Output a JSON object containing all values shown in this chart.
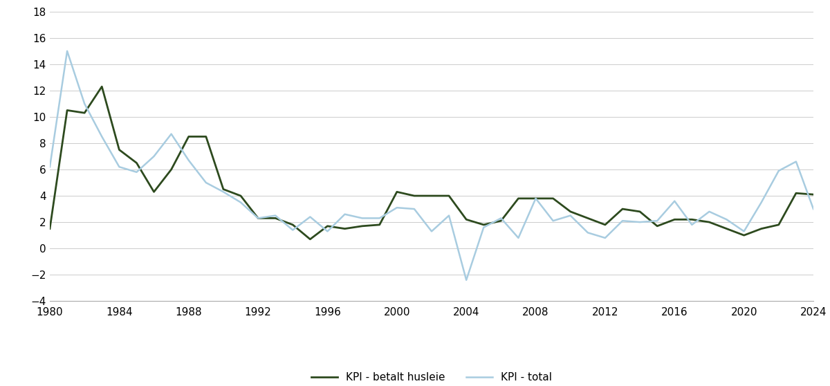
{
  "years": [
    1980,
    1981,
    1982,
    1983,
    1984,
    1985,
    1986,
    1987,
    1988,
    1989,
    1990,
    1991,
    1992,
    1993,
    1994,
    1995,
    1996,
    1997,
    1998,
    1999,
    2000,
    2001,
    2002,
    2003,
    2004,
    2005,
    2006,
    2007,
    2008,
    2009,
    2010,
    2011,
    2012,
    2013,
    2014,
    2015,
    2016,
    2017,
    2018,
    2019,
    2020,
    2021,
    2022,
    2023,
    2024
  ],
  "kpi_husleie": [
    1.5,
    10.5,
    10.3,
    12.3,
    7.5,
    6.5,
    4.3,
    6.0,
    8.5,
    8.5,
    4.5,
    4.0,
    2.3,
    2.3,
    1.8,
    0.7,
    1.7,
    1.5,
    1.7,
    1.8,
    4.3,
    4.0,
    4.0,
    4.0,
    2.2,
    1.8,
    2.1,
    3.8,
    3.8,
    3.8,
    2.8,
    2.3,
    1.8,
    3.0,
    2.8,
    1.7,
    2.2,
    2.2,
    2.0,
    1.5,
    1.0,
    1.5,
    1.8,
    4.2,
    4.1
  ],
  "kpi_total": [
    6.2,
    15.0,
    11.0,
    8.5,
    6.2,
    5.8,
    7.0,
    8.7,
    6.7,
    5.0,
    4.3,
    3.5,
    2.3,
    2.5,
    1.4,
    2.4,
    1.3,
    2.6,
    2.3,
    2.3,
    3.1,
    3.0,
    1.3,
    2.5,
    -2.4,
    1.6,
    2.3,
    0.8,
    3.8,
    2.1,
    2.5,
    1.2,
    0.8,
    2.1,
    2.0,
    2.1,
    3.6,
    1.8,
    2.8,
    2.2,
    1.3,
    3.5,
    5.9,
    6.6,
    3.0
  ],
  "color_husleie": "#2d4a1e",
  "color_total": "#a8cce0",
  "linewidth_husleie": 2.0,
  "linewidth_total": 1.8,
  "ylim": [
    -4,
    18
  ],
  "yticks": [
    -4,
    -2,
    0,
    2,
    4,
    6,
    8,
    10,
    12,
    14,
    16,
    18
  ],
  "xtick_years": [
    1980,
    1984,
    1988,
    1992,
    1996,
    2000,
    2004,
    2008,
    2012,
    2016,
    2020,
    2024
  ],
  "legend_label_husleie": "KPI - betalt husleie",
  "legend_label_total": "KPI - total",
  "background_color": "#ffffff",
  "grid_color": "#cccccc"
}
